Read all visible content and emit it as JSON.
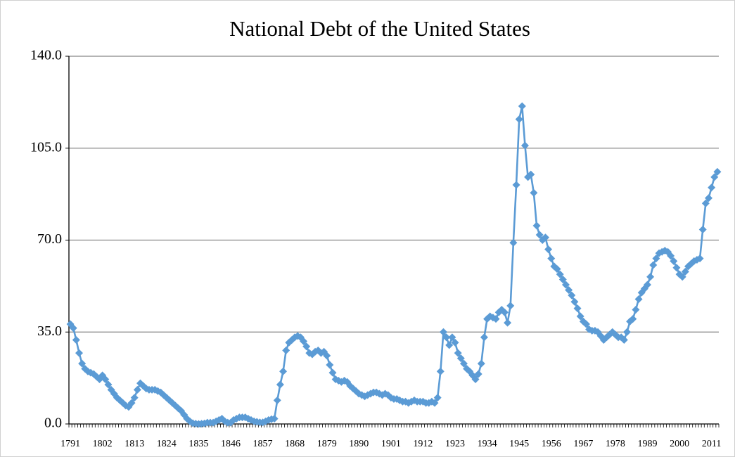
{
  "chart_data": {
    "type": "line",
    "title": "National Debt of the United States",
    "categories": [
      "1791",
      null,
      null,
      null,
      null,
      null,
      null,
      null,
      null,
      null,
      null,
      "1802",
      null,
      null,
      null,
      null,
      null,
      null,
      null,
      null,
      null,
      null,
      "1813",
      null,
      null,
      null,
      null,
      null,
      null,
      null,
      null,
      null,
      null,
      "1824",
      null,
      null,
      null,
      null,
      null,
      null,
      null,
      null,
      null,
      null,
      "1835",
      null,
      null,
      null,
      null,
      null,
      null,
      null,
      null,
      null,
      null,
      "1846",
      null,
      null,
      null,
      null,
      null,
      null,
      null,
      null,
      null,
      null,
      "1857",
      null,
      null,
      null,
      null,
      null,
      null,
      null,
      null,
      null,
      null,
      "1868",
      null,
      null,
      null,
      null,
      null,
      null,
      null,
      null,
      null,
      null,
      "1879",
      null,
      null,
      null,
      null,
      null,
      null,
      null,
      null,
      null,
      null,
      "1890",
      null,
      null,
      null,
      null,
      null,
      null,
      null,
      null,
      null,
      null,
      "1901",
      null,
      null,
      null,
      null,
      null,
      null,
      null,
      null,
      null,
      null,
      "1912",
      null,
      null,
      null,
      null,
      null,
      null,
      null,
      null,
      null,
      null,
      "1923",
      null,
      null,
      null,
      null,
      null,
      null,
      null,
      null,
      null,
      null,
      "1934",
      null,
      null,
      null,
      null,
      null,
      null,
      null,
      null,
      null,
      null,
      "1945",
      null,
      null,
      null,
      null,
      null,
      null,
      null,
      null,
      null,
      null,
      "1956",
      null,
      null,
      null,
      null,
      null,
      null,
      null,
      null,
      null,
      null,
      "1967",
      null,
      null,
      null,
      null,
      null,
      null,
      null,
      null,
      null,
      null,
      "1978",
      null,
      null,
      null,
      null,
      null,
      null,
      null,
      null,
      null,
      null,
      "1989",
      null,
      null,
      null,
      null,
      null,
      null,
      null,
      null,
      null,
      null,
      "2000",
      null,
      null,
      null,
      null,
      null,
      null,
      null,
      null,
      null,
      null,
      "2011",
      null,
      null
    ],
    "values": [
      38,
      36.5,
      32,
      27,
      23,
      21,
      20,
      19.5,
      19,
      18,
      17,
      18.5,
      17,
      15,
      13,
      11.5,
      10,
      9,
      8,
      7,
      6.5,
      8,
      10,
      13,
      15.5,
      14.5,
      13.5,
      13,
      13,
      13,
      12.5,
      12,
      11,
      10,
      9,
      8,
      7,
      6,
      5,
      3.5,
      2,
      1,
      0.3,
      0.1,
      0,
      0.1,
      0.2,
      0.5,
      0.5,
      0.5,
      1,
      1.5,
      2,
      1,
      0.5,
      0.5,
      1.5,
      2,
      2.5,
      2.5,
      2.5,
      2,
      1.5,
      1,
      0.8,
      0.6,
      0.6,
      1,
      1.5,
      1.8,
      2,
      9,
      15,
      20,
      28,
      31,
      32,
      33,
      33.5,
      33,
      31.5,
      29.5,
      27,
      26.5,
      27.5,
      28,
      27,
      27.5,
      26,
      22.5,
      19.5,
      17,
      16.5,
      16,
      16.5,
      16,
      14.5,
      13.5,
      12.5,
      11.5,
      11,
      10.5,
      11,
      11.5,
      12,
      12,
      11.5,
      11,
      11.5,
      11,
      10,
      9.5,
      9.5,
      9,
      8.5,
      8.5,
      8,
      8.5,
      9,
      8.5,
      8.5,
      8.5,
      8,
      8,
      8.5,
      8,
      10,
      20,
      35,
      33,
      30,
      33,
      31,
      27,
      25,
      23,
      21,
      20,
      18.5,
      17,
      19,
      23,
      33,
      40,
      41,
      40.5,
      40,
      42.5,
      43.5,
      42.5,
      38.5,
      45,
      69,
      91,
      116,
      121,
      106,
      94,
      95,
      88,
      75.5,
      72,
      70,
      71,
      66.5,
      63,
      60,
      59,
      57,
      55,
      53,
      51,
      49,
      46.5,
      44,
      41,
      39,
      38,
      36,
      35.5,
      35.5,
      35,
      33.5,
      32,
      33,
      34,
      35,
      34,
      33,
      33,
      32,
      35,
      39,
      40,
      43.5,
      47.5,
      50,
      51.5,
      53,
      56,
      60.5,
      63,
      65,
      65.5,
      66,
      65.5,
      64,
      62,
      59.5,
      57,
      56,
      58,
      60,
      61,
      62,
      62.5,
      63,
      74,
      84,
      86,
      90,
      94,
      96
    ],
    "color": "#5b9bd5",
    "ylim": [
      0,
      140
    ],
    "yticks": [
      {
        "value": 0,
        "label": "0.0"
      },
      {
        "value": 35,
        "label": "35.0"
      },
      {
        "value": 70,
        "label": "70.0"
      },
      {
        "value": 105,
        "label": "105.0"
      },
      {
        "value": 140,
        "label": "140.0"
      }
    ],
    "grid": true
  }
}
